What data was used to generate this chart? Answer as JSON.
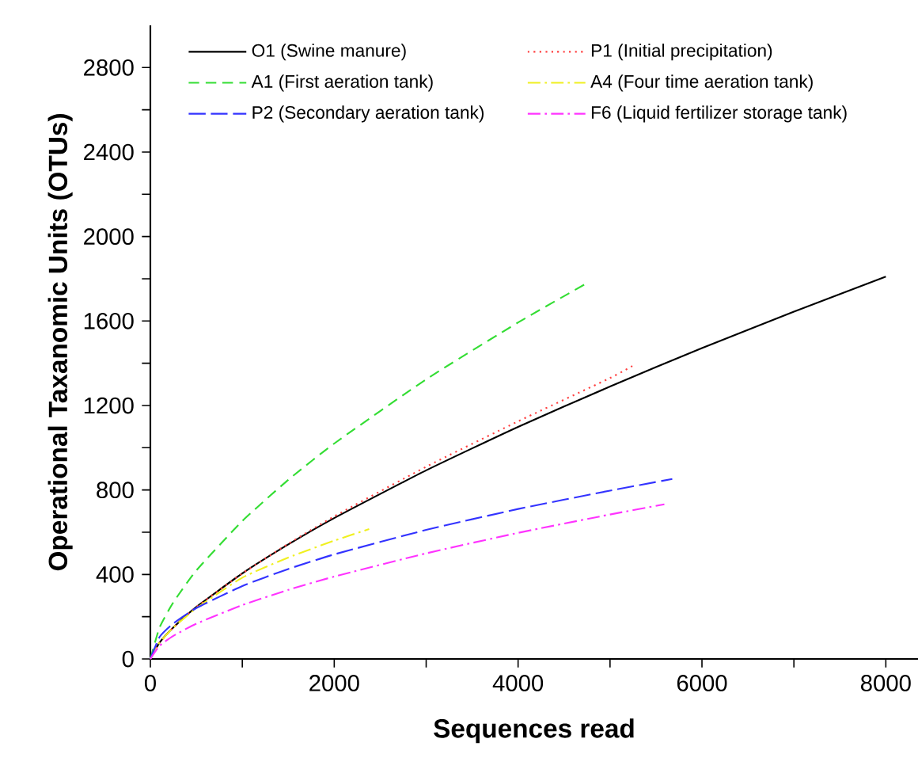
{
  "chart_data": {
    "type": "line",
    "xlabel": "Sequences read",
    "ylabel": "Operational Taxanomic Units (OTUs)",
    "xlim": [
      0,
      8350
    ],
    "ylim": [
      0,
      3000
    ],
    "xticks": [
      0,
      {
        "value": 1000,
        "label": null
      },
      2000,
      {
        "value": 3000,
        "label": null
      },
      4000,
      {
        "value": 5000,
        "label": null
      },
      6000,
      {
        "value": 7000,
        "label": null
      },
      8000
    ],
    "yticks": [
      0,
      {
        "value": 200,
        "label": null
      },
      400,
      {
        "value": 600,
        "label": null
      },
      800,
      {
        "value": 1000,
        "label": null
      },
      1200,
      {
        "value": 1400,
        "label": null
      },
      1600,
      {
        "value": 1800,
        "label": null
      },
      2000,
      {
        "value": 2200,
        "label": null
      },
      2400,
      {
        "value": 2600,
        "label": null
      },
      2800
    ],
    "legend": "top",
    "grid": false,
    "marker": "none",
    "series": [
      {
        "name": "O1 (Swine manure)",
        "color": "#000000",
        "line_style": "solid",
        "x": [
          0,
          100,
          250,
          500,
          1000,
          1500,
          2000,
          3000,
          4000,
          5000,
          6000,
          7000,
          8000
        ],
        "values": [
          0,
          77,
          149,
          246,
          405,
          542,
          667,
          893,
          1099,
          1290,
          1472,
          1644,
          1810
        ]
      },
      {
        "name": "P1 (Initial precipitation)",
        "color": "#ff4040",
        "line_style": "dotted",
        "x": [
          0,
          100,
          250,
          500,
          1000,
          1500,
          2000,
          3000,
          4000,
          5000,
          5275
        ],
        "values": [
          0,
          77,
          149,
          246,
          405,
          545,
          675,
          910,
          1125,
          1330,
          1395
        ]
      },
      {
        "name": "A1 (First aeration tank)",
        "color": "#33dd33",
        "line_style": "dashed",
        "x": [
          0,
          100,
          250,
          500,
          1000,
          1500,
          2000,
          3000,
          4000,
          4759
        ],
        "values": [
          0,
          149,
          268,
          419,
          653,
          848,
          1020,
          1324,
          1593,
          1782
        ]
      },
      {
        "name": "A4 (Four time aeration tank)",
        "color": "#f0f020",
        "line_style": "dashdot",
        "x": [
          0,
          100,
          250,
          500,
          1000,
          1500,
          2000,
          2380
        ],
        "values": [
          0,
          77,
          149,
          240,
          385,
          480,
          560,
          615
        ]
      },
      {
        "name": "P2 (Secondary aeration tank)",
        "color": "#3333ff",
        "line_style": "longdashed",
        "x": [
          0,
          100,
          250,
          500,
          1000,
          1500,
          2000,
          3000,
          4000,
          5000,
          5677
        ],
        "values": [
          0,
          104,
          168,
          241,
          345,
          426,
          495,
          611,
          710,
          797,
          852
        ]
      },
      {
        "name": "F6 (Liquid fertilizer storage tank)",
        "color": "#ff33ff",
        "line_style": "dashdot",
        "x": [
          0,
          100,
          250,
          500,
          1000,
          1500,
          2000,
          3000,
          4000,
          5000,
          5591
        ],
        "values": [
          0,
          62,
          109,
          167,
          255,
          327,
          390,
          500,
          597,
          684,
          732
        ]
      }
    ]
  }
}
